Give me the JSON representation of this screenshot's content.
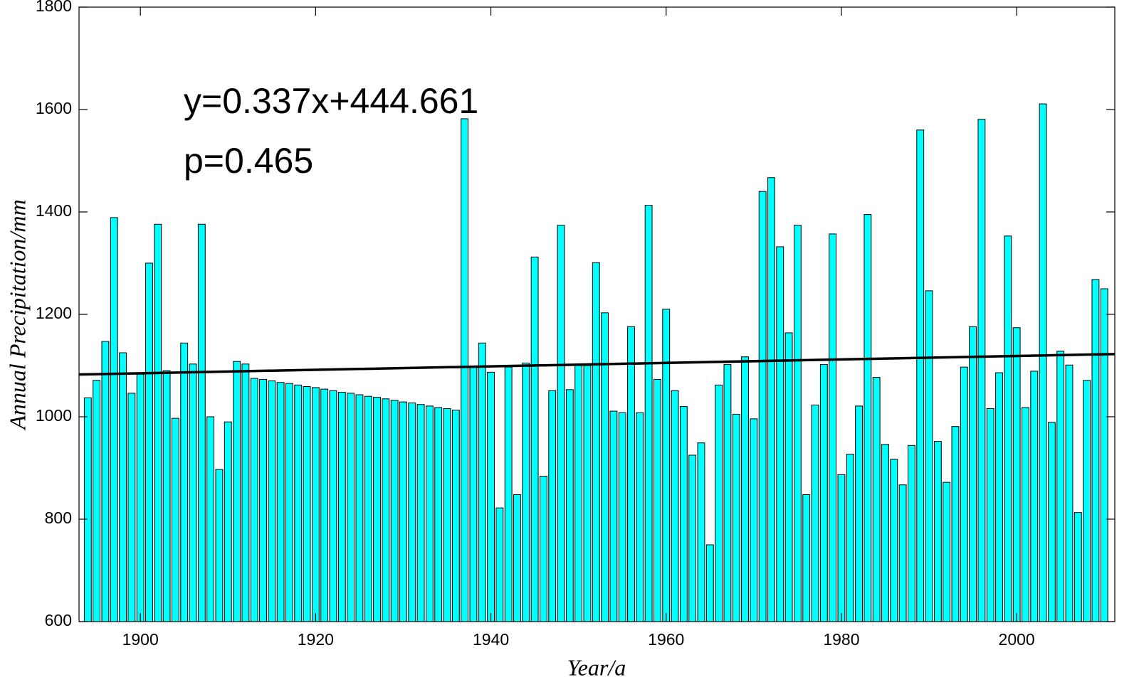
{
  "chart_data": {
    "type": "bar",
    "xlabel": "Year/a",
    "ylabel": "Annual Precipitation/mm",
    "annotations": [
      "y=0.337x+444.661",
      "p=0.465"
    ],
    "trend": {
      "slope": 0.337,
      "intercept": 444.661,
      "color": "#000000"
    },
    "color": "#00ffff",
    "edgecolor": "#000000",
    "x": [
      1894,
      1895,
      1896,
      1897,
      1898,
      1899,
      1900,
      1901,
      1902,
      1903,
      1904,
      1905,
      1906,
      1907,
      1908,
      1909,
      1910,
      1911,
      1912,
      1913,
      1914,
      1915,
      1916,
      1917,
      1918,
      1919,
      1920,
      1921,
      1922,
      1923,
      1924,
      1925,
      1926,
      1927,
      1928,
      1929,
      1930,
      1931,
      1932,
      1933,
      1934,
      1935,
      1936,
      1937,
      1938,
      1939,
      1940,
      1941,
      1942,
      1943,
      1944,
      1945,
      1946,
      1947,
      1948,
      1949,
      1950,
      1951,
      1952,
      1953,
      1954,
      1955,
      1956,
      1957,
      1958,
      1959,
      1960,
      1961,
      1962,
      1963,
      1964,
      1965,
      1966,
      1967,
      1968,
      1969,
      1970,
      1971,
      1972,
      1973,
      1974,
      1975,
      1976,
      1977,
      1978,
      1979,
      1980,
      1981,
      1982,
      1983,
      1984,
      1985,
      1986,
      1987,
      1988,
      1989,
      1990,
      1991,
      1992,
      1993,
      1994,
      1995,
      1996,
      1997,
      1998,
      1999,
      2000,
      2001,
      2002,
      2003,
      2004,
      2005,
      2006,
      2007,
      2008,
      2009,
      2010
    ],
    "values": [
      1037,
      1071,
      1147,
      1389,
      1125,
      1046,
      1083,
      1300,
      1376,
      1090,
      997,
      1144,
      1103,
      1376,
      1000,
      897,
      990,
      1108,
      1103,
      1075,
      1073,
      1070,
      1067,
      1065,
      1062,
      1059,
      1057,
      1054,
      1051,
      1048,
      1046,
      1043,
      1040,
      1038,
      1035,
      1032,
      1029,
      1027,
      1024,
      1021,
      1018,
      1016,
      1013,
      1582,
      1097,
      1144,
      1087,
      822,
      1097,
      848,
      1105,
      1312,
      884,
      1051,
      1374,
      1053,
      1100,
      1100,
      1301,
      1203,
      1011,
      1008,
      1176,
      1008,
      1413,
      1073,
      1210,
      1051,
      1020,
      925,
      949,
      750,
      1062,
      1102,
      1005,
      1117,
      996,
      1440,
      1467,
      1332,
      1164,
      1374,
      848,
      1023,
      1102,
      1357,
      887,
      927,
      1021,
      1395,
      1077,
      946,
      917,
      867,
      944,
      1560,
      1246,
      952,
      872,
      981,
      1097,
      1176,
      1581,
      1016,
      1086,
      1353,
      1174,
      1018,
      1089,
      1611,
      989,
      1128,
      1101,
      813,
      1071,
      1268,
      1250
    ],
    "xlim": [
      1893,
      2011.2
    ],
    "xticks": [
      1900,
      1920,
      1940,
      1960,
      1980,
      2000
    ],
    "ylim": [
      600,
      1800
    ],
    "yticks": [
      600,
      800,
      1000,
      1200,
      1400,
      1600,
      1800
    ],
    "grid": false
  }
}
